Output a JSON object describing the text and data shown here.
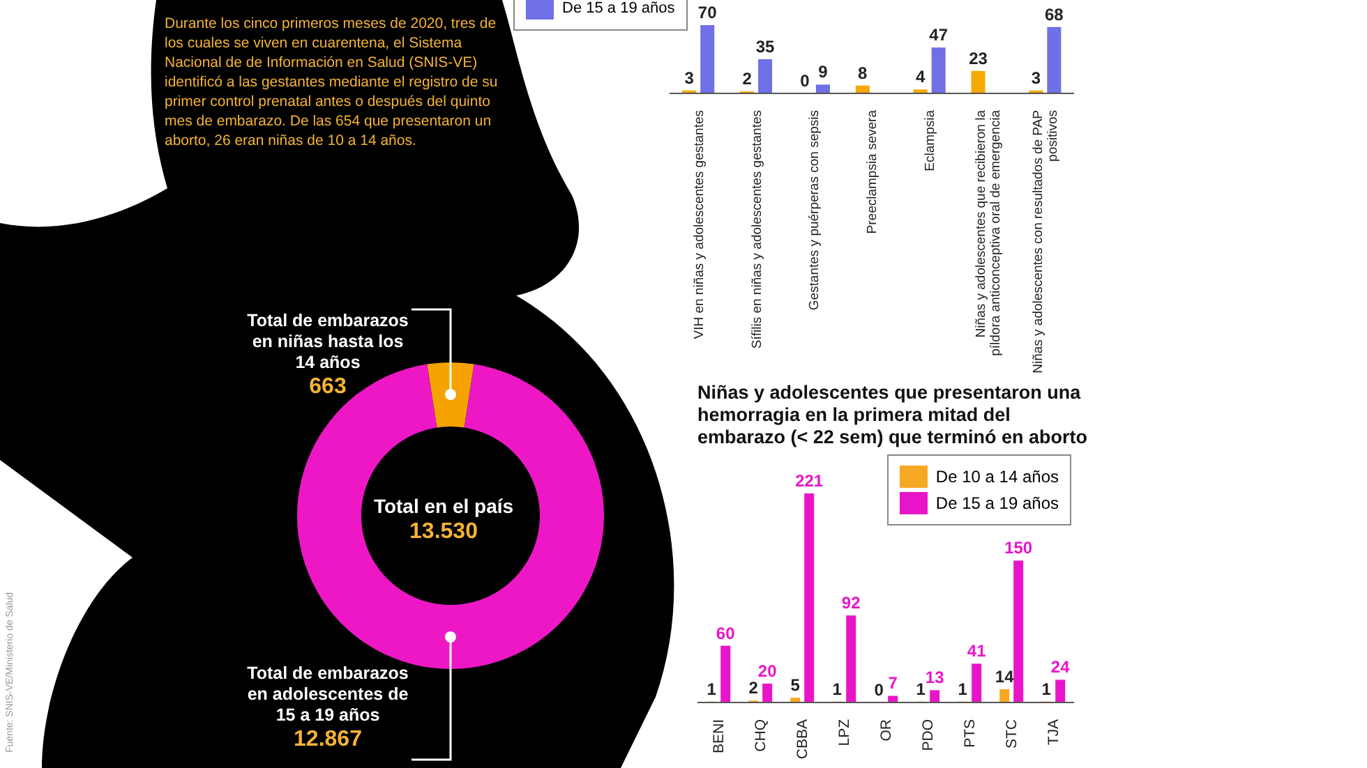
{
  "chart_data": [
    {
      "type": "bar",
      "categories": [
        "VIH en niñas y adolescentes gestantes",
        "Sífilis en niñas y adolescentes gestantes",
        "Gestantes y puérperas con sepsis",
        "Preeclampsia severa",
        "Eclampsia",
        "Niñas y adolescentes que recibieron la píldora anticonceptiva oral de emergencia",
        "Niñas y adolescentes con resultados de PAP positivos"
      ],
      "series": [
        {
          "color": "#f5a800",
          "values": [
            3,
            2,
            0,
            8,
            4,
            23,
            3
          ]
        },
        {
          "name": "De 15 a 19 años",
          "color": "#6f6fe6",
          "values": [
            70,
            35,
            9,
            null,
            47,
            null,
            68
          ]
        }
      ],
      "data_labels": true,
      "legend": "top left"
    },
    {
      "type": "donut",
      "categories": [
        "Total de embarazos en niñas hasta los 14 años",
        "Total de embarazos en adolescentes de 15 a 19 años"
      ],
      "values": [
        663,
        12867
      ],
      "value_labels": [
        "663",
        "12.867"
      ],
      "colors": [
        "#f5a300",
        "#ee17c6"
      ],
      "annotations": [
        "Durante los cinco primeros meses de 2020, tres de los cuales se viven en cuarentena, el Sistema Nacional de de Información en Salud (SNIS-VE) identificó a las gestantes mediante el registro de su primer control prenatal antes o después del quinto mes de embarazo. De las 654 que presentaron un aborto, 26 eran niñas de 10 a 14 años.",
        "Total en el país",
        "13.530",
        "Fuente: SNIS-VE/Ministerio de Salud"
      ]
    },
    {
      "type": "bar",
      "title": "Niñas y adolescentes que presentaron una hemorragia en la primera mitad del embarazo (< 22 sem) que terminó en aborto",
      "categories": [
        "BENI",
        "CHQ",
        "CBBA",
        "LPZ",
        "OR",
        "PDO",
        "PTS",
        "STC",
        "TJA"
      ],
      "series": [
        {
          "name": "De 10 a 14 años",
          "color": "#f7a823",
          "values": [
            1,
            2,
            5,
            1,
            0,
            1,
            1,
            14,
            1
          ]
        },
        {
          "name": "De 15 a 19 años",
          "color": "#e815c8",
          "values": [
            60,
            20,
            221,
            92,
            7,
            13,
            41,
            150,
            24
          ]
        }
      ],
      "data_labels": true,
      "legend": "top right"
    }
  ]
}
